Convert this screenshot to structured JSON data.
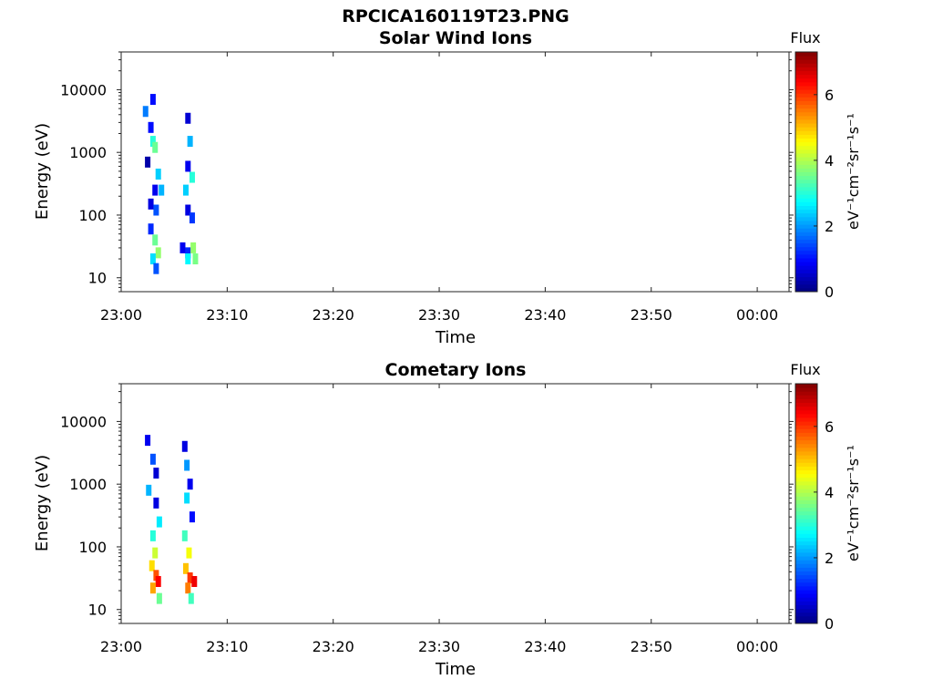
{
  "figure_title": "RPCICA160119T23.PNG",
  "colorbar": {
    "label": "Flux",
    "unit": "eV⁻¹cm⁻²sr⁻¹s⁻¹",
    "min": 0,
    "max": 7.3,
    "ticks": [
      "0",
      "2",
      "4",
      "6"
    ],
    "colormap": "jet"
  },
  "chart_data": [
    {
      "type": "heatmap",
      "title": "Solar Wind Ions",
      "xlabel": "Time",
      "ylabel": "Energy (eV)",
      "y_scale": "log",
      "ylim": [
        6,
        40000
      ],
      "xlim": [
        "23:00",
        "00:03"
      ],
      "x_ticks": [
        "23:00",
        "23:10",
        "23:20",
        "23:30",
        "23:40",
        "23:50",
        "00:00"
      ],
      "y_ticks": [
        "10",
        "100",
        "1000",
        "10000"
      ],
      "blocks": [
        {
          "time": "23:03.0",
          "energy": 7000,
          "flux": 1.0
        },
        {
          "time": "23:02.3",
          "energy": 4500,
          "flux": 1.8
        },
        {
          "time": "23:02.8",
          "energy": 2500,
          "flux": 1.0
        },
        {
          "time": "23:03.0",
          "energy": 1500,
          "flux": 3.0
        },
        {
          "time": "23:03.2",
          "energy": 1200,
          "flux": 3.5
        },
        {
          "time": "23:02.5",
          "energy": 700,
          "flux": 0.3
        },
        {
          "time": "23:03.5",
          "energy": 450,
          "flux": 2.4
        },
        {
          "time": "23:03.2",
          "energy": 250,
          "flux": 0.8
        },
        {
          "time": "23:03.8",
          "energy": 250,
          "flux": 2.2
        },
        {
          "time": "23:02.8",
          "energy": 150,
          "flux": 0.7
        },
        {
          "time": "23:03.3",
          "energy": 120,
          "flux": 1.5
        },
        {
          "time": "23:02.8",
          "energy": 60,
          "flux": 1.2
        },
        {
          "time": "23:03.2",
          "energy": 40,
          "flux": 3.5
        },
        {
          "time": "23:03.5",
          "energy": 25,
          "flux": 3.8
        },
        {
          "time": "23:03.0",
          "energy": 20,
          "flux": 2.5
        },
        {
          "time": "23:03.3",
          "energy": 14,
          "flux": 1.5
        },
        {
          "time": "23:06.3",
          "energy": 3500,
          "flux": 0.6
        },
        {
          "time": "23:06.5",
          "energy": 1500,
          "flux": 2.2
        },
        {
          "time": "23:06.3",
          "energy": 600,
          "flux": 0.8
        },
        {
          "time": "23:06.7",
          "energy": 400,
          "flux": 3.0
        },
        {
          "time": "23:06.1",
          "energy": 250,
          "flux": 2.4
        },
        {
          "time": "23:06.3",
          "energy": 120,
          "flux": 0.7
        },
        {
          "time": "23:06.7",
          "energy": 90,
          "flux": 1.3
        },
        {
          "time": "23:05.8",
          "energy": 30,
          "flux": 0.8
        },
        {
          "time": "23:06.3",
          "energy": 25,
          "flux": 1.2
        },
        {
          "time": "23:06.8",
          "energy": 30,
          "flux": 3.8
        },
        {
          "time": "23:06.3",
          "energy": 20,
          "flux": 2.7
        },
        {
          "time": "23:07.0",
          "energy": 20,
          "flux": 3.6
        }
      ]
    },
    {
      "type": "heatmap",
      "title": "Cometary Ions",
      "xlabel": "Time",
      "ylabel": "Energy (eV)",
      "y_scale": "log",
      "ylim": [
        6,
        40000
      ],
      "xlim": [
        "23:00",
        "00:03"
      ],
      "x_ticks": [
        "23:00",
        "23:10",
        "23:20",
        "23:30",
        "23:40",
        "23:50",
        "00:00"
      ],
      "y_ticks": [
        "10",
        "100",
        "1000",
        "10000"
      ],
      "blocks": [
        {
          "time": "23:02.5",
          "energy": 5000,
          "flux": 0.8
        },
        {
          "time": "23:03.0",
          "energy": 2500,
          "flux": 1.5
        },
        {
          "time": "23:03.3",
          "energy": 1500,
          "flux": 0.6
        },
        {
          "time": "23:02.6",
          "energy": 800,
          "flux": 2.2
        },
        {
          "time": "23:03.3",
          "energy": 500,
          "flux": 0.7
        },
        {
          "time": "23:03.6",
          "energy": 250,
          "flux": 2.6
        },
        {
          "time": "23:03.0",
          "energy": 150,
          "flux": 3.0
        },
        {
          "time": "23:03.2",
          "energy": 80,
          "flux": 4.2
        },
        {
          "time": "23:02.9",
          "energy": 50,
          "flux": 4.8
        },
        {
          "time": "23:03.3",
          "energy": 35,
          "flux": 5.8
        },
        {
          "time": "23:03.5",
          "energy": 28,
          "flux": 6.4
        },
        {
          "time": "23:03.0",
          "energy": 22,
          "flux": 5.2
        },
        {
          "time": "23:03.6",
          "energy": 15,
          "flux": 3.5
        },
        {
          "time": "23:06.0",
          "energy": 4000,
          "flux": 0.7
        },
        {
          "time": "23:06.2",
          "energy": 2000,
          "flux": 2.0
        },
        {
          "time": "23:06.5",
          "energy": 1000,
          "flux": 0.8
        },
        {
          "time": "23:06.2",
          "energy": 600,
          "flux": 2.5
        },
        {
          "time": "23:06.7",
          "energy": 300,
          "flux": 1.0
        },
        {
          "time": "23:06.0",
          "energy": 150,
          "flux": 3.2
        },
        {
          "time": "23:06.4",
          "energy": 80,
          "flux": 4.5
        },
        {
          "time": "23:06.1",
          "energy": 45,
          "flux": 5.0
        },
        {
          "time": "23:06.5",
          "energy": 32,
          "flux": 6.0
        },
        {
          "time": "23:06.9",
          "energy": 28,
          "flux": 6.5
        },
        {
          "time": "23:06.3",
          "energy": 22,
          "flux": 5.5
        },
        {
          "time": "23:06.6",
          "energy": 15,
          "flux": 3.2
        }
      ]
    }
  ]
}
